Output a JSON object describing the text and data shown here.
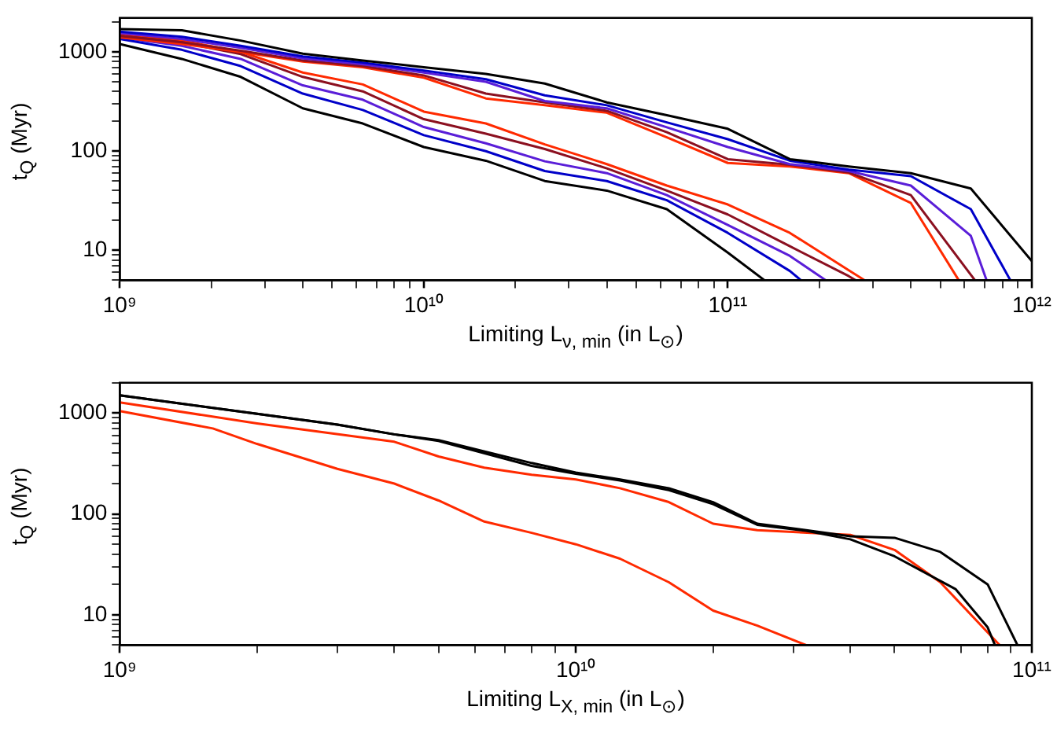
{
  "chart_data": [
    {
      "type": "line",
      "xlabel": "Limiting L$_{ν, min}$ (in L$_{⊙}$)",
      "ylabel": "t$_{Q}$ (Myr)",
      "log": "xy",
      "xlim": [
        1000000000.0,
        1000000000000.0
      ],
      "ylim": [
        5,
        2200
      ],
      "xticks": [
        {
          "value": 1000000000.0,
          "label": "10⁹"
        },
        {
          "value": 2000000000.0,
          "label": null
        },
        {
          "value": 3000000000.0,
          "label": null
        },
        {
          "value": 4000000000.0,
          "label": null
        },
        {
          "value": 5000000000.0,
          "label": null
        },
        {
          "value": 6000000000.0,
          "label": null
        },
        {
          "value": 7000000000.0,
          "label": null
        },
        {
          "value": 8000000000.0,
          "label": null
        },
        {
          "value": 9000000000.0,
          "label": null
        },
        {
          "value": 10000000000.0,
          "label": "10¹⁰"
        },
        {
          "value": 20000000000.0,
          "label": null
        },
        {
          "value": 30000000000.0,
          "label": null
        },
        {
          "value": 40000000000.0,
          "label": null
        },
        {
          "value": 50000000000.0,
          "label": null
        },
        {
          "value": 60000000000.0,
          "label": null
        },
        {
          "value": 70000000000.0,
          "label": null
        },
        {
          "value": 80000000000.0,
          "label": null
        },
        {
          "value": 90000000000.0,
          "label": null
        },
        {
          "value": 100000000000.0,
          "label": "10¹¹"
        },
        {
          "value": 200000000000.0,
          "label": null
        },
        {
          "value": 300000000000.0,
          "label": null
        },
        {
          "value": 400000000000.0,
          "label": null
        },
        {
          "value": 500000000000.0,
          "label": null
        },
        {
          "value": 600000000000.0,
          "label": null
        },
        {
          "value": 700000000000.0,
          "label": null
        },
        {
          "value": 800000000000.0,
          "label": null
        },
        {
          "value": 900000000000.0,
          "label": null
        },
        {
          "value": 1000000000000.0,
          "label": "10¹²"
        }
      ],
      "yticks": [
        {
          "value": 5,
          "label": null
        },
        {
          "value": 6,
          "label": null
        },
        {
          "value": 7,
          "label": null
        },
        {
          "value": 8,
          "label": null
        },
        {
          "value": 9,
          "label": null
        },
        10,
        {
          "value": 20,
          "label": null
        },
        {
          "value": 30,
          "label": null
        },
        {
          "value": 40,
          "label": null
        },
        {
          "value": 50,
          "label": null
        },
        {
          "value": 60,
          "label": null
        },
        {
          "value": 70,
          "label": null
        },
        {
          "value": 80,
          "label": null
        },
        {
          "value": 90,
          "label": null
        },
        100,
        {
          "value": 200,
          "label": null
        },
        {
          "value": 300,
          "label": null
        },
        {
          "value": 400,
          "label": null
        },
        {
          "value": 500,
          "label": null
        },
        {
          "value": 600,
          "label": null
        },
        {
          "value": 700,
          "label": null
        },
        {
          "value": 800,
          "label": null
        },
        {
          "value": 900,
          "label": null
        },
        1000,
        {
          "value": 2000,
          "label": null
        }
      ],
      "series": [
        {
          "color": "#000000",
          "x": [
            1000000000.0,
            1600000000.0,
            2500000000.0,
            4000000000.0,
            6300000000.0,
            10000000000.0,
            16000000000.0,
            25000000000.0,
            40000000000.0,
            63000000000.0,
            100000000000.0,
            160000000000.0,
            250000000000.0,
            400000000000.0,
            630000000000.0,
            1000000000000.0
          ],
          "values": [
            1700,
            1650,
            1300,
            960,
            820,
            700,
            600,
            480,
            310,
            230,
            168,
            83,
            70,
            60,
            42,
            7.8
          ]
        },
        {
          "color": "#0000c8",
          "x": [
            1000000000.0,
            1600000000.0,
            2500000000.0,
            4000000000.0,
            6300000000.0,
            10000000000.0,
            16000000000.0,
            25000000000.0,
            40000000000.0,
            63000000000.0,
            100000000000.0,
            160000000000.0,
            250000000000.0,
            400000000000.0,
            630000000000.0,
            850000000000.0
          ],
          "values": [
            1600,
            1420,
            1150,
            900,
            780,
            650,
            530,
            365,
            290,
            195,
            132,
            80,
            65,
            56,
            26,
            5
          ]
        },
        {
          "color": "#5a1ed8",
          "x": [
            1000000000.0,
            1600000000.0,
            2500000000.0,
            4000000000.0,
            6300000000.0,
            10000000000.0,
            16000000000.0,
            25000000000.0,
            40000000000.0,
            63000000000.0,
            100000000000.0,
            160000000000.0,
            250000000000.0,
            400000000000.0,
            630000000000.0,
            710000000000.0
          ],
          "values": [
            1550,
            1350,
            1100,
            860,
            750,
            620,
            500,
            320,
            270,
            174,
            110,
            74,
            63,
            45,
            14,
            5
          ]
        },
        {
          "color": "#8b1020",
          "x": [
            1000000000.0,
            1600000000.0,
            2500000000.0,
            4000000000.0,
            6300000000.0,
            10000000000.0,
            16000000000.0,
            25000000000.0,
            40000000000.0,
            63000000000.0,
            100000000000.0,
            160000000000.0,
            250000000000.0,
            400000000000.0,
            650000000000.0
          ],
          "values": [
            1450,
            1250,
            1030,
            820,
            720,
            580,
            380,
            310,
            255,
            155,
            83,
            73,
            61,
            36,
            5
          ]
        },
        {
          "color": "#ff2a00",
          "x": [
            1000000000.0,
            1600000000.0,
            2500000000.0,
            4000000000.0,
            6300000000.0,
            10000000000.0,
            16000000000.0,
            25000000000.0,
            40000000000.0,
            63000000000.0,
            100000000000.0,
            160000000000.0,
            250000000000.0,
            400000000000.0,
            575000000000.0
          ],
          "values": [
            1400,
            1200,
            1000,
            800,
            700,
            550,
            340,
            290,
            244,
            138,
            76,
            70,
            60,
            30,
            5
          ]
        },
        {
          "color": "#000000",
          "x": [
            1000000000.0,
            1600000000.0,
            2500000000.0,
            4000000000.0,
            6300000000.0,
            10000000000.0,
            16000000000.0,
            25000000000.0,
            40000000000.0,
            63000000000.0,
            100000000000.0,
            132000000000.0
          ],
          "values": [
            1200,
            850,
            560,
            270,
            190,
            110,
            80,
            50,
            40,
            26,
            9.5,
            5
          ]
        },
        {
          "color": "#0000c8",
          "x": [
            1000000000.0,
            1600000000.0,
            2500000000.0,
            4000000000.0,
            6300000000.0,
            10000000000.0,
            16000000000.0,
            25000000000.0,
            40000000000.0,
            63000000000.0,
            100000000000.0,
            160000000000.0,
            174000000000.0
          ],
          "values": [
            1350,
            1050,
            720,
            380,
            260,
            145,
            100,
            63,
            50,
            32,
            15,
            6.2,
            5
          ]
        },
        {
          "color": "#5a1ed8",
          "x": [
            1000000000.0,
            1600000000.0,
            2500000000.0,
            4000000000.0,
            6300000000.0,
            10000000000.0,
            16000000000.0,
            25000000000.0,
            40000000000.0,
            63000000000.0,
            100000000000.0,
            160000000000.0,
            210000000000.0
          ],
          "values": [
            1400,
            1150,
            850,
            460,
            330,
            175,
            120,
            79,
            60,
            36,
            18,
            8.8,
            5
          ]
        },
        {
          "color": "#8b1020",
          "x": [
            1000000000.0,
            1600000000.0,
            2500000000.0,
            4000000000.0,
            6300000000.0,
            10000000000.0,
            16000000000.0,
            25000000000.0,
            40000000000.0,
            63000000000.0,
            100000000000.0,
            160000000000.0,
            250000000000.0,
            263000000000.0
          ],
          "values": [
            1450,
            1250,
            950,
            560,
            400,
            210,
            150,
            105,
            67,
            40,
            23,
            11,
            5.5,
            5
          ]
        },
        {
          "color": "#ff2a00",
          "x": [
            1000000000.0,
            1600000000.0,
            2500000000.0,
            4000000000.0,
            6300000000.0,
            10000000000.0,
            16000000000.0,
            25000000000.0,
            40000000000.0,
            63000000000.0,
            100000000000.0,
            160000000000.0,
            250000000000.0,
            282000000000.0
          ],
          "values": [
            1500,
            1300,
            1000,
            620,
            470,
            250,
            190,
            117,
            74,
            45,
            29,
            15,
            6.3,
            5
          ]
        }
      ]
    },
    {
      "type": "line",
      "xlabel": "Limiting L$_{X, min}$ (in L$_{⊙}$)",
      "ylabel": "t$_{Q}$ (Myr)",
      "log": "xy",
      "xlim": [
        1000000000.0,
        100000000000.0
      ],
      "ylim": [
        5,
        2000
      ],
      "xticks": [
        {
          "value": 1000000000.0,
          "label": "10⁹"
        },
        {
          "value": 2000000000.0,
          "label": null
        },
        {
          "value": 3000000000.0,
          "label": null
        },
        {
          "value": 4000000000.0,
          "label": null
        },
        {
          "value": 5000000000.0,
          "label": null
        },
        {
          "value": 6000000000.0,
          "label": null
        },
        {
          "value": 7000000000.0,
          "label": null
        },
        {
          "value": 8000000000.0,
          "label": null
        },
        {
          "value": 9000000000.0,
          "label": null
        },
        {
          "value": 10000000000.0,
          "label": "10¹⁰"
        },
        {
          "value": 20000000000.0,
          "label": null
        },
        {
          "value": 30000000000.0,
          "label": null
        },
        {
          "value": 40000000000.0,
          "label": null
        },
        {
          "value": 50000000000.0,
          "label": null
        },
        {
          "value": 60000000000.0,
          "label": null
        },
        {
          "value": 70000000000.0,
          "label": null
        },
        {
          "value": 80000000000.0,
          "label": null
        },
        {
          "value": 90000000000.0,
          "label": null
        },
        {
          "value": 100000000000.0,
          "label": "10¹¹"
        }
      ],
      "yticks": [
        {
          "value": 5,
          "label": null
        },
        {
          "value": 6,
          "label": null
        },
        {
          "value": 7,
          "label": null
        },
        {
          "value": 8,
          "label": null
        },
        {
          "value": 9,
          "label": null
        },
        10,
        {
          "value": 20,
          "label": null
        },
        {
          "value": 30,
          "label": null
        },
        {
          "value": 40,
          "label": null
        },
        {
          "value": 50,
          "label": null
        },
        {
          "value": 60,
          "label": null
        },
        {
          "value": 70,
          "label": null
        },
        {
          "value": 80,
          "label": null
        },
        {
          "value": 90,
          "label": null
        },
        100,
        {
          "value": 200,
          "label": null
        },
        {
          "value": 300,
          "label": null
        },
        {
          "value": 400,
          "label": null
        },
        {
          "value": 500,
          "label": null
        },
        {
          "value": 600,
          "label": null
        },
        {
          "value": 700,
          "label": null
        },
        {
          "value": 800,
          "label": null
        },
        {
          "value": 900,
          "label": null
        },
        1000,
        {
          "value": 2000,
          "label": null
        }
      ],
      "series": [
        {
          "color": "#000000",
          "x": [
            1000000000.0,
            2000000000.0,
            3000000000.0,
            4000000000.0,
            5000000000.0,
            8000000000.0,
            10000000000.0,
            12500000000.0,
            16000000000.0,
            20000000000.0,
            25000000000.0,
            32000000000.0,
            40000000000.0,
            50000000000.0,
            63000000000.0,
            80000000000.0,
            93000000000.0
          ],
          "values": [
            1500,
            985,
            770,
            616,
            540,
            320,
            257,
            220,
            180,
            131,
            80,
            69,
            60,
            58,
            42,
            20,
            5
          ]
        },
        {
          "color": "#000000",
          "x": [
            1000000000.0,
            2000000000.0,
            3000000000.0,
            4000000000.0,
            5000000000.0,
            8000000000.0,
            10000000000.0,
            12500000000.0,
            16000000000.0,
            20000000000.0,
            25000000000.0,
            32000000000.0,
            40000000000.0,
            50000000000.0,
            68000000000.0,
            80000000000.0,
            83000000000.0
          ],
          "values": [
            1500,
            985,
            770,
            616,
            530,
            300,
            250,
            215,
            172,
            125,
            78,
            68,
            56,
            38,
            18,
            7.5,
            5
          ]
        },
        {
          "color": "#ff2a00",
          "x": [
            1000000000.0,
            2000000000.0,
            4000000000.0,
            5000000000.0,
            6300000000.0,
            8000000000.0,
            10000000000.0,
            12500000000.0,
            16000000000.0,
            20000000000.0,
            25000000000.0,
            40000000000.0,
            50000000000.0,
            63000000000.0,
            85000000000.0
          ],
          "values": [
            1280,
            790,
            520,
            372,
            288,
            245,
            220,
            180,
            131,
            80,
            69,
            62,
            44,
            21,
            5
          ]
        },
        {
          "color": "#ff2a00",
          "x": [
            1000000000.0,
            1600000000.0,
            2000000000.0,
            3000000000.0,
            4000000000.0,
            5000000000.0,
            6300000000.0,
            8000000000.0,
            10000000000.0,
            12500000000.0,
            16000000000.0,
            20000000000.0,
            25000000000.0,
            32000000000.0
          ],
          "values": [
            1050,
            705,
            495,
            280,
            200,
            136,
            84,
            65,
            50,
            36,
            21,
            11,
            7.8,
            5
          ]
        }
      ]
    }
  ]
}
